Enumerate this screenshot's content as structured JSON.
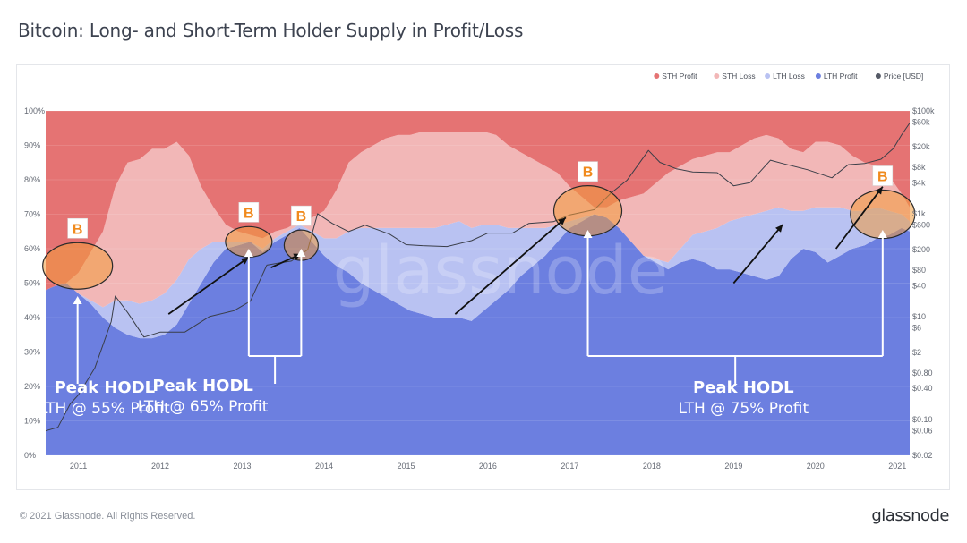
{
  "page": {
    "title": "Bitcoin: Long- and Short-Term Holder Supply in Profit/Loss",
    "copyright": "© 2021 Glassnode. All Rights Reserved.",
    "brand": "glassnode",
    "watermark": "glassnode"
  },
  "chart_data": {
    "type": "area",
    "stacked": true,
    "title": "Bitcoin: Long- and Short-Term Holder Supply in Profit/Loss",
    "x_ticks": [
      "2011",
      "2012",
      "2013",
      "2014",
      "2015",
      "2016",
      "2017",
      "2018",
      "2019",
      "2020",
      "2021"
    ],
    "x": [
      2010.6,
      2010.7,
      2010.85,
      2011.0,
      2011.15,
      2011.3,
      2011.45,
      2011.6,
      2011.75,
      2011.9,
      2012.05,
      2012.2,
      2012.35,
      2012.5,
      2012.65,
      2012.8,
      2012.95,
      2013.1,
      2013.25,
      2013.4,
      2013.55,
      2013.7,
      2013.85,
      2014.0,
      2014.15,
      2014.3,
      2014.45,
      2014.6,
      2014.75,
      2014.9,
      2015.05,
      2015.2,
      2015.35,
      2015.5,
      2015.65,
      2015.8,
      2015.95,
      2016.1,
      2016.25,
      2016.4,
      2016.55,
      2016.7,
      2016.85,
      2017.0,
      2017.15,
      2017.3,
      2017.45,
      2017.6,
      2017.75,
      2017.9,
      2018.05,
      2018.2,
      2018.35,
      2018.5,
      2018.65,
      2018.8,
      2018.95,
      2019.1,
      2019.25,
      2019.4,
      2019.55,
      2019.7,
      2019.85,
      2020.0,
      2020.15,
      2020.3,
      2020.45,
      2020.6,
      2020.75,
      2020.9,
      2021.05,
      2021.15
    ],
    "y_left_ticks": [
      "0%",
      "10%",
      "20%",
      "30%",
      "40%",
      "50%",
      "60%",
      "70%",
      "80%",
      "90%",
      "100%"
    ],
    "y_left_range": [
      0,
      100
    ],
    "y_right_ticks": [
      "$0.02",
      "$0.06",
      "$0.10",
      "$0.40",
      "$0.80",
      "$2",
      "$6",
      "$10",
      "$40",
      "$80",
      "$200",
      "$600",
      "$1k",
      "$4k",
      "$8k",
      "$20k",
      "$60k",
      "$100k"
    ],
    "y_right_scale": "log",
    "legend_position": "top-right",
    "series": [
      {
        "name": "LTH Profit",
        "color": "#6c7fe0",
        "values": [
          48,
          49,
          50,
          47,
          44,
          40,
          37,
          35,
          34,
          34,
          35,
          38,
          44,
          50,
          56,
          60,
          61,
          62,
          59,
          62,
          64,
          66,
          62,
          58,
          55,
          53,
          50,
          48,
          46,
          44,
          42,
          41,
          40,
          40,
          40,
          39,
          42,
          45,
          48,
          52,
          55,
          58,
          62,
          66,
          68,
          70,
          69,
          66,
          62,
          58,
          56,
          54,
          56,
          57,
          56,
          54,
          54,
          53,
          52,
          51,
          52,
          57,
          60,
          59,
          56,
          58,
          60,
          61,
          63,
          64,
          66,
          65
        ]
      },
      {
        "name": "LTH Loss",
        "color": "#b9c2f2",
        "values": [
          0,
          0,
          0,
          0,
          1,
          3,
          8,
          10,
          10,
          11,
          12,
          13,
          13,
          10,
          6,
          2,
          1,
          0,
          1,
          1,
          1,
          1,
          3,
          5,
          8,
          12,
          16,
          18,
          20,
          22,
          24,
          25,
          26,
          27,
          28,
          27,
          25,
          22,
          18,
          14,
          11,
          8,
          5,
          2,
          1,
          0,
          0,
          0,
          0,
          0,
          1,
          2,
          4,
          7,
          9,
          12,
          14,
          16,
          18,
          20,
          20,
          14,
          11,
          13,
          16,
          14,
          11,
          10,
          9,
          7,
          4,
          3
        ]
      },
      {
        "name": "STH Loss",
        "color": "#f2b7b7",
        "values": [
          0,
          0,
          0,
          6,
          14,
          22,
          33,
          40,
          42,
          44,
          42,
          40,
          30,
          18,
          10,
          5,
          3,
          2,
          3,
          2,
          1,
          1,
          4,
          8,
          14,
          20,
          22,
          24,
          26,
          27,
          27,
          28,
          28,
          27,
          26,
          28,
          27,
          26,
          24,
          22,
          20,
          18,
          15,
          10,
          6,
          2,
          3,
          8,
          13,
          18,
          22,
          26,
          24,
          22,
          22,
          22,
          20,
          21,
          22,
          22,
          20,
          18,
          17,
          19,
          19,
          18,
          16,
          14,
          12,
          10,
          6,
          4
        ]
      },
      {
        "name": "STH Profit",
        "color": "#e57373",
        "values": [
          52,
          51,
          50,
          47,
          41,
          35,
          22,
          15,
          14,
          11,
          11,
          9,
          13,
          22,
          28,
          33,
          35,
          36,
          37,
          35,
          34,
          32,
          31,
          29,
          23,
          15,
          12,
          10,
          8,
          7,
          7,
          6,
          6,
          6,
          6,
          6,
          6,
          7,
          10,
          12,
          14,
          16,
          18,
          22,
          25,
          28,
          28,
          26,
          25,
          24,
          21,
          18,
          16,
          14,
          13,
          12,
          12,
          10,
          8,
          7,
          8,
          11,
          12,
          9,
          9,
          10,
          13,
          15,
          16,
          19,
          24,
          28
        ]
      }
    ],
    "price_series": {
      "name": "Price [USD]",
      "color": "#555a66",
      "x": [
        2010.6,
        2010.75,
        2010.9,
        2011.0,
        2011.2,
        2011.4,
        2011.45,
        2011.6,
        2011.8,
        2012.0,
        2012.3,
        2012.6,
        2012.9,
        2013.1,
        2013.3,
        2013.45,
        2013.6,
        2013.8,
        2013.92,
        2014.1,
        2014.3,
        2014.5,
        2014.8,
        2015.0,
        2015.2,
        2015.5,
        2015.8,
        2016.0,
        2016.3,
        2016.5,
        2016.8,
        2017.0,
        2017.3,
        2017.5,
        2017.7,
        2017.96,
        2018.1,
        2018.3,
        2018.5,
        2018.8,
        2019.0,
        2019.2,
        2019.45,
        2019.6,
        2019.9,
        2020.2,
        2020.4,
        2020.6,
        2020.8,
        2020.95,
        2021.05,
        2021.15
      ],
      "values": [
        0.06,
        0.07,
        0.2,
        0.3,
        1,
        8,
        25,
        12,
        4,
        5,
        5,
        10,
        13,
        20,
        100,
        110,
        120,
        200,
        1000,
        650,
        450,
        600,
        400,
        250,
        240,
        230,
        300,
        420,
        420,
        650,
        700,
        950,
        1200,
        2500,
        4500,
        17000,
        10000,
        7500,
        6500,
        6300,
        3500,
        4000,
        11000,
        9500,
        7200,
        5000,
        9000,
        9500,
        11500,
        18500,
        34000,
        58000
      ]
    }
  },
  "annotations": {
    "peak_markers": [
      {
        "label": "B",
        "x": 2010.99,
        "y": 55
      },
      {
        "label": "B",
        "x": 2013.08,
        "y": 62
      },
      {
        "label": "B",
        "x": 2013.72,
        "y": 61
      },
      {
        "label": "B",
        "x": 2017.22,
        "y": 71
      },
      {
        "label": "B",
        "x": 2020.82,
        "y": 70
      }
    ],
    "trend_arrows": [
      {
        "from": [
          2012.1,
          41
        ],
        "to": [
          2013.08,
          57.5
        ]
      },
      {
        "from": [
          2013.35,
          54.5
        ],
        "to": [
          2013.72,
          58.5
        ]
      },
      {
        "from": [
          2015.6,
          41
        ],
        "to": [
          2016.95,
          69
        ]
      },
      {
        "from": [
          2019.0,
          50
        ],
        "to": [
          2019.6,
          67
        ]
      },
      {
        "from": [
          2020.25,
          60
        ],
        "to": [
          2020.82,
          78
        ]
      }
    ],
    "labels": [
      {
        "title": "Peak HODL",
        "subtitle": "LTH @ 55% Profit",
        "x": 2011.32,
        "y": 14
      },
      {
        "title": "Peak HODL",
        "subtitle": "LTH @ 65% Profit",
        "x": 2012.52,
        "y": 14.6
      },
      {
        "title": "Peak HODL",
        "subtitle": "LTH @ 75% Profit",
        "x": 2019.12,
        "y": 14
      }
    ]
  }
}
